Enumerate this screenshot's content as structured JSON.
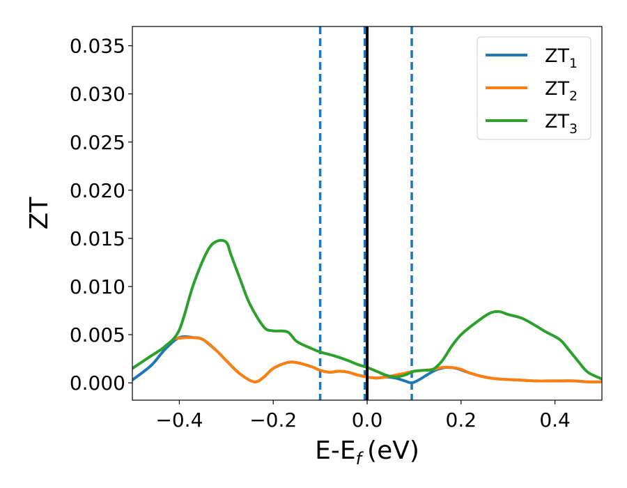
{
  "chart_data": {
    "type": "line",
    "xlabel": "E-E",
    "xlabel_sub": "f",
    "xlabel_unit": "(eV)",
    "ylabel": "ZT",
    "xlim": [
      -0.5,
      0.5
    ],
    "ylim": [
      -0.0018,
      0.037
    ],
    "xticks": [
      -0.4,
      -0.2,
      0.0,
      0.2,
      0.4
    ],
    "xtick_labels": [
      "−0.4",
      "−0.2",
      "0.0",
      "0.2",
      "0.4"
    ],
    "yticks": [
      0.0,
      0.005,
      0.01,
      0.015,
      0.02,
      0.025,
      0.03,
      0.035
    ],
    "ytick_labels": [
      "0.000",
      "0.005",
      "0.010",
      "0.015",
      "0.020",
      "0.025",
      "0.030",
      "0.035"
    ],
    "grid": false,
    "legend_position": "top-right",
    "vlines": [
      {
        "x": 0.0,
        "style": "solid",
        "color": "#000000"
      },
      {
        "x": -0.1,
        "style": "dashed",
        "color": "#1f77b4"
      },
      {
        "x": -0.005,
        "style": "dashed",
        "color": "#1f77b4"
      },
      {
        "x": 0.095,
        "style": "dashed",
        "color": "#1f77b4"
      }
    ],
    "series": [
      {
        "name": "ZT",
        "sub": "1",
        "color": "#1f77b4",
        "x": [
          -0.5,
          -0.46,
          -0.43,
          -0.4,
          -0.37,
          -0.35,
          -0.32,
          -0.3,
          -0.27,
          -0.24,
          -0.22,
          -0.2,
          -0.17,
          -0.15,
          -0.12,
          -0.1,
          -0.08,
          -0.06,
          -0.04,
          -0.02,
          0.0,
          0.02,
          0.04,
          0.06,
          0.08,
          0.095,
          0.11,
          0.13,
          0.15,
          0.17,
          0.19,
          0.22,
          0.25,
          0.28,
          0.32,
          0.36,
          0.4,
          0.44,
          0.47,
          0.5
        ],
        "y": [
          0.0003,
          0.0018,
          0.0035,
          0.0047,
          0.0047,
          0.0045,
          0.0033,
          0.0023,
          0.0009,
          0.0001,
          0.0006,
          0.0015,
          0.0021,
          0.0021,
          0.0017,
          0.0013,
          0.0011,
          0.0012,
          0.0011,
          0.0008,
          0.0006,
          0.0005,
          0.0006,
          0.0005,
          0.0002,
          0.0,
          0.0003,
          0.0009,
          0.0014,
          0.0016,
          0.0015,
          0.001,
          0.0006,
          0.0004,
          0.0003,
          0.0002,
          0.0002,
          0.0002,
          0.0001,
          0.0001
        ]
      },
      {
        "name": "ZT",
        "sub": "2",
        "color": "#ff7f0e",
        "x": [
          -0.41,
          -0.38,
          -0.35,
          -0.32,
          -0.3,
          -0.27,
          -0.24,
          -0.22,
          -0.2,
          -0.17,
          -0.15,
          -0.12,
          -0.1,
          -0.08,
          -0.06,
          -0.04,
          -0.02,
          0.0,
          0.02,
          0.04,
          0.06,
          0.08,
          0.1,
          0.12,
          0.14,
          0.16,
          0.18,
          0.2,
          0.22,
          0.25,
          0.28,
          0.32,
          0.36,
          0.4,
          0.44,
          0.47,
          0.5
        ],
        "y": [
          0.0046,
          0.0047,
          0.0045,
          0.0033,
          0.0023,
          0.0009,
          0.0001,
          0.0006,
          0.0015,
          0.0021,
          0.0021,
          0.0017,
          0.0013,
          0.0011,
          0.0012,
          0.0011,
          0.0008,
          0.0006,
          0.0005,
          0.0006,
          0.0008,
          0.001,
          0.0012,
          0.0013,
          0.0014,
          0.0016,
          0.0016,
          0.0014,
          0.001,
          0.0006,
          0.0004,
          0.0003,
          0.0002,
          0.0002,
          0.0002,
          0.0001,
          0.0001
        ]
      },
      {
        "name": "ZT",
        "sub": "3",
        "color": "#2ca02c",
        "x": [
          -0.5,
          -0.46,
          -0.43,
          -0.4,
          -0.37,
          -0.34,
          -0.32,
          -0.3,
          -0.29,
          -0.27,
          -0.25,
          -0.22,
          -0.2,
          -0.17,
          -0.15,
          -0.12,
          -0.1,
          -0.07,
          -0.04,
          -0.02,
          0.0,
          0.02,
          0.04,
          0.06,
          0.08,
          0.1,
          0.12,
          0.14,
          0.16,
          0.18,
          0.2,
          0.23,
          0.26,
          0.28,
          0.3,
          0.33,
          0.36,
          0.38,
          0.41,
          0.43,
          0.45,
          0.47,
          0.5
        ],
        "y": [
          0.0015,
          0.0028,
          0.0038,
          0.0055,
          0.0102,
          0.0137,
          0.0147,
          0.0146,
          0.0133,
          0.0107,
          0.0082,
          0.0058,
          0.0054,
          0.0053,
          0.0043,
          0.0036,
          0.0032,
          0.0028,
          0.0023,
          0.0019,
          0.0016,
          0.0012,
          0.0008,
          0.0006,
          0.0008,
          0.0012,
          0.0013,
          0.0014,
          0.0023,
          0.0038,
          0.005,
          0.0062,
          0.0072,
          0.0074,
          0.0071,
          0.0067,
          0.0059,
          0.0053,
          0.0045,
          0.0034,
          0.0022,
          0.0011,
          0.0004
        ]
      }
    ]
  }
}
